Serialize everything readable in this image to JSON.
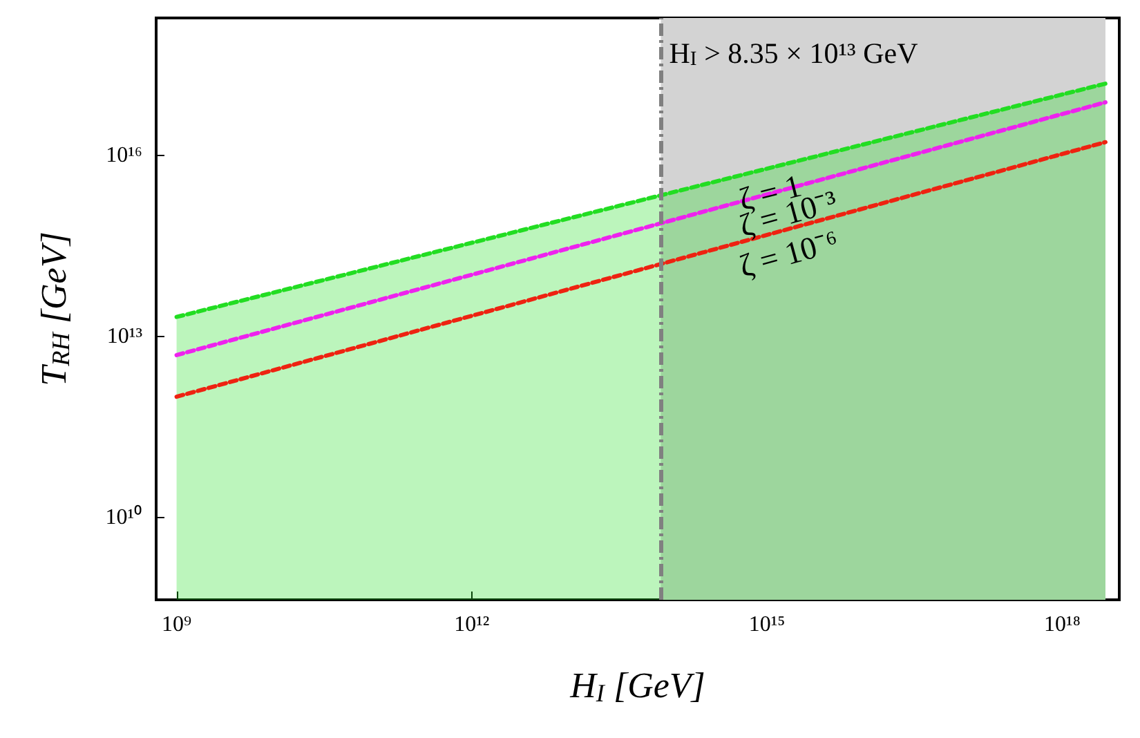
{
  "chart_data": {
    "type": "line",
    "xlabel": "H$_{I}$ [GeV]",
    "ylabel": "T$_{RH}$ [GeV]",
    "log": "xy",
    "grid": false,
    "legend": false,
    "marker": "none",
    "line_style": "dashed",
    "xlim": [
      620000000.0,
      3.8e+18
    ],
    "ylim": [
      430000000.0,
      1.9e+18
    ],
    "xticks": [
      {
        "value": 1000000000.0,
        "label": "10⁹"
      },
      {
        "value": 1000000000000.0,
        "label": "10¹²"
      },
      {
        "value": 1000000000000000.0,
        "label": "10¹⁵"
      },
      {
        "value": 1e+18,
        "label": "10¹⁸"
      }
    ],
    "yticks": [
      {
        "value": 10000000000.0,
        "label": "10¹⁰"
      },
      {
        "value": 10000000000000.0,
        "label": "10¹³"
      },
      {
        "value": 1e+16,
        "label": "10¹⁶"
      }
    ],
    "series": [
      {
        "type": "area",
        "name": "ζ = 1",
        "color": "#22dd22",
        "values": [
          21000000000000.0,
          1.55e+17
        ]
      },
      {
        "name": "ζ = 10⁻³",
        "color": "#ee22ee",
        "values": [
          4900000000000.0,
          7.6e+16
        ]
      },
      {
        "name": "ζ = 10⁻⁶",
        "color": "#ee2211",
        "values": [
          1000000000000.0,
          1.66e+16
        ]
      }
    ],
    "x": [
      1000000000.0,
      2.75e+18
    ],
    "bands": [
      {
        "axis": "x",
        "from": 83500000000000.0,
        "to": 2.75e+18,
        "color": "#d3d3d3",
        "label": "H$_{I}$ > 8.35 × 10¹³ GeV"
      }
    ],
    "ref_lines": [
      {
        "axis": "x",
        "value": 83500000000000.0,
        "color": "#808080",
        "line_style": "dashdot"
      }
    ]
  }
}
